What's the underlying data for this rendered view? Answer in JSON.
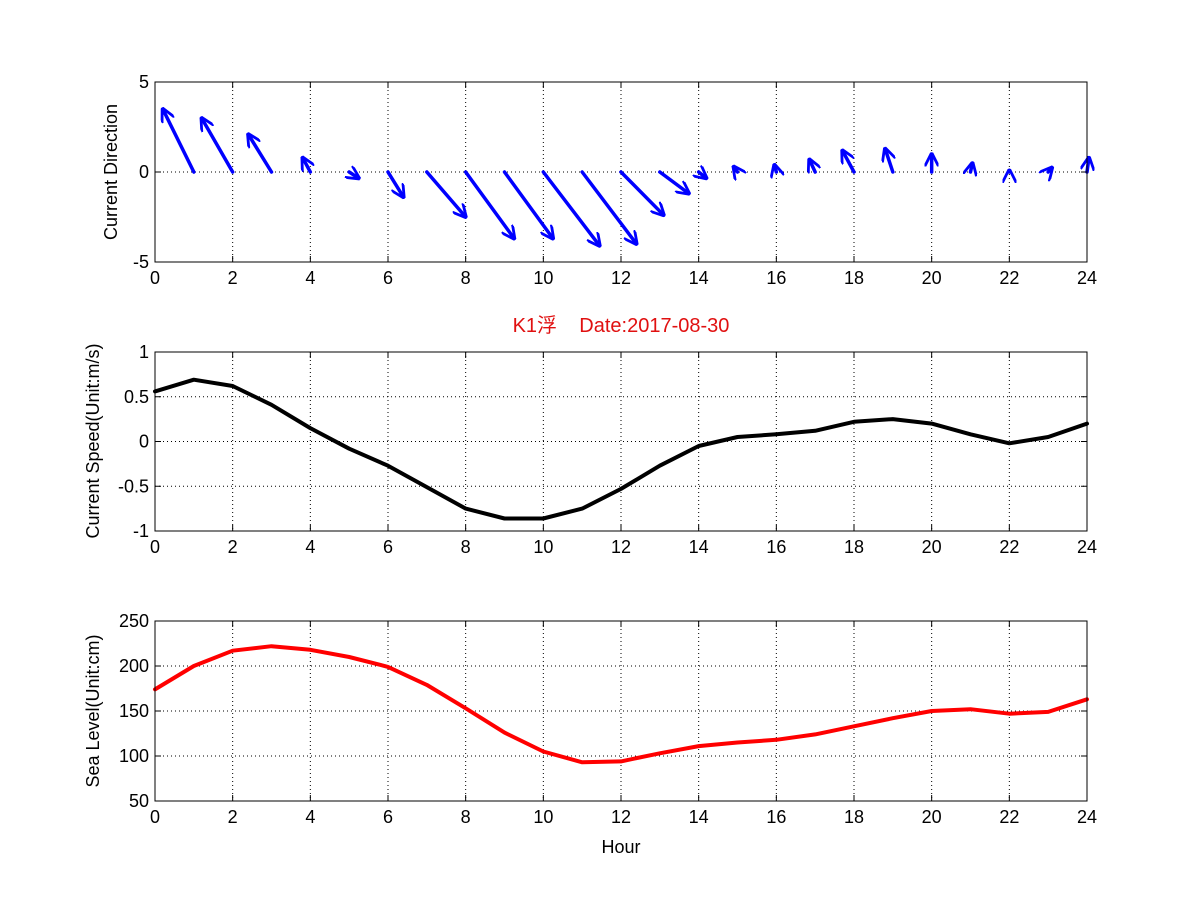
{
  "chart_data": [
    {
      "type": "quiver",
      "ylabel": "Current Direction",
      "xlabel": "",
      "title": "",
      "xlim": [
        0,
        24
      ],
      "ylim": [
        -5,
        5
      ],
      "xticks": [
        "0",
        "2",
        "4",
        "6",
        "8",
        "10",
        "12",
        "14",
        "16",
        "18",
        "20",
        "22",
        "24"
      ],
      "yticks": [
        "-5",
        "0",
        "5"
      ],
      "grid": true,
      "color": "#0000ff",
      "series": [
        {
          "x": 1,
          "u": -0.8,
          "v": 3.5
        },
        {
          "x": 2,
          "u": -0.8,
          "v": 3.0
        },
        {
          "x": 3,
          "u": -0.6,
          "v": 2.1
        },
        {
          "x": 4,
          "u": -0.2,
          "v": 0.8
        },
        {
          "x": 5,
          "u": 0.25,
          "v": -0.35
        },
        {
          "x": 6,
          "u": 0.4,
          "v": -1.4
        },
        {
          "x": 7,
          "u": 1.0,
          "v": -2.5
        },
        {
          "x": 8,
          "u": 1.25,
          "v": -3.7
        },
        {
          "x": 9,
          "u": 1.25,
          "v": -3.7
        },
        {
          "x": 10,
          "u": 1.45,
          "v": -4.1
        },
        {
          "x": 11,
          "u": 1.4,
          "v": -4.0
        },
        {
          "x": 12,
          "u": 1.1,
          "v": -2.4
        },
        {
          "x": 13,
          "u": 0.75,
          "v": -1.2
        },
        {
          "x": 14,
          "u": 0.2,
          "v": -0.35
        },
        {
          "x": 15,
          "u": -0.1,
          "v": 0.3
        },
        {
          "x": 16,
          "u": -0.05,
          "v": 0.4
        },
        {
          "x": 17,
          "u": -0.15,
          "v": 0.7
        },
        {
          "x": 18,
          "u": -0.3,
          "v": 1.2
        },
        {
          "x": 19,
          "u": -0.2,
          "v": 1.3
        },
        {
          "x": 20,
          "u": 0.0,
          "v": 1.0
        },
        {
          "x": 21,
          "u": 0.05,
          "v": 0.5
        },
        {
          "x": 22,
          "u": 0.0,
          "v": 0.1
        },
        {
          "x": 23,
          "u": 0.1,
          "v": 0.25
        },
        {
          "x": 24,
          "u": 0.05,
          "v": 0.8
        }
      ]
    },
    {
      "type": "line",
      "title": "K1浮    Date:2017-08-30",
      "title_color": "#e01010",
      "ylabel": "Current Speed(Unit:m/s)",
      "xlabel": "",
      "xlim": [
        0,
        24
      ],
      "ylim": [
        -1,
        1
      ],
      "xticks": [
        "0",
        "2",
        "4",
        "6",
        "8",
        "10",
        "12",
        "14",
        "16",
        "18",
        "20",
        "22",
        "24"
      ],
      "yticks": [
        "-1",
        "-0.5",
        "0",
        "0.5",
        "1"
      ],
      "grid": true,
      "color": "#000000",
      "x": [
        0,
        1,
        2,
        3,
        4,
        5,
        6,
        7,
        8,
        9,
        10,
        11,
        12,
        13,
        14,
        15,
        16,
        17,
        18,
        19,
        20,
        21,
        22,
        23,
        24
      ],
      "values": [
        0.56,
        0.69,
        0.62,
        0.41,
        0.15,
        -0.08,
        -0.27,
        -0.51,
        -0.75,
        -0.86,
        -0.86,
        -0.75,
        -0.53,
        -0.27,
        -0.05,
        0.05,
        0.08,
        0.12,
        0.22,
        0.25,
        0.2,
        0.08,
        -0.02,
        0.05,
        0.2
      ]
    },
    {
      "type": "line",
      "title": "",
      "ylabel": "Sea Level(Unit:cm)",
      "xlabel": "Hour",
      "xlim": [
        0,
        24
      ],
      "ylim": [
        50,
        250
      ],
      "xticks": [
        "0",
        "2",
        "4",
        "6",
        "8",
        "10",
        "12",
        "14",
        "16",
        "18",
        "20",
        "22",
        "24"
      ],
      "yticks": [
        "50",
        "100",
        "150",
        "200",
        "250"
      ],
      "grid": true,
      "color": "#ff0000",
      "x": [
        0,
        1,
        2,
        3,
        4,
        5,
        6,
        7,
        8,
        9,
        10,
        11,
        12,
        13,
        14,
        15,
        16,
        17,
        18,
        19,
        20,
        21,
        22,
        23,
        24
      ],
      "values": [
        174,
        200,
        217,
        222,
        218,
        210,
        199,
        179,
        153,
        126,
        105,
        93,
        94,
        103,
        111,
        115,
        118,
        124,
        133,
        142,
        150,
        152,
        147,
        149,
        163
      ]
    }
  ]
}
